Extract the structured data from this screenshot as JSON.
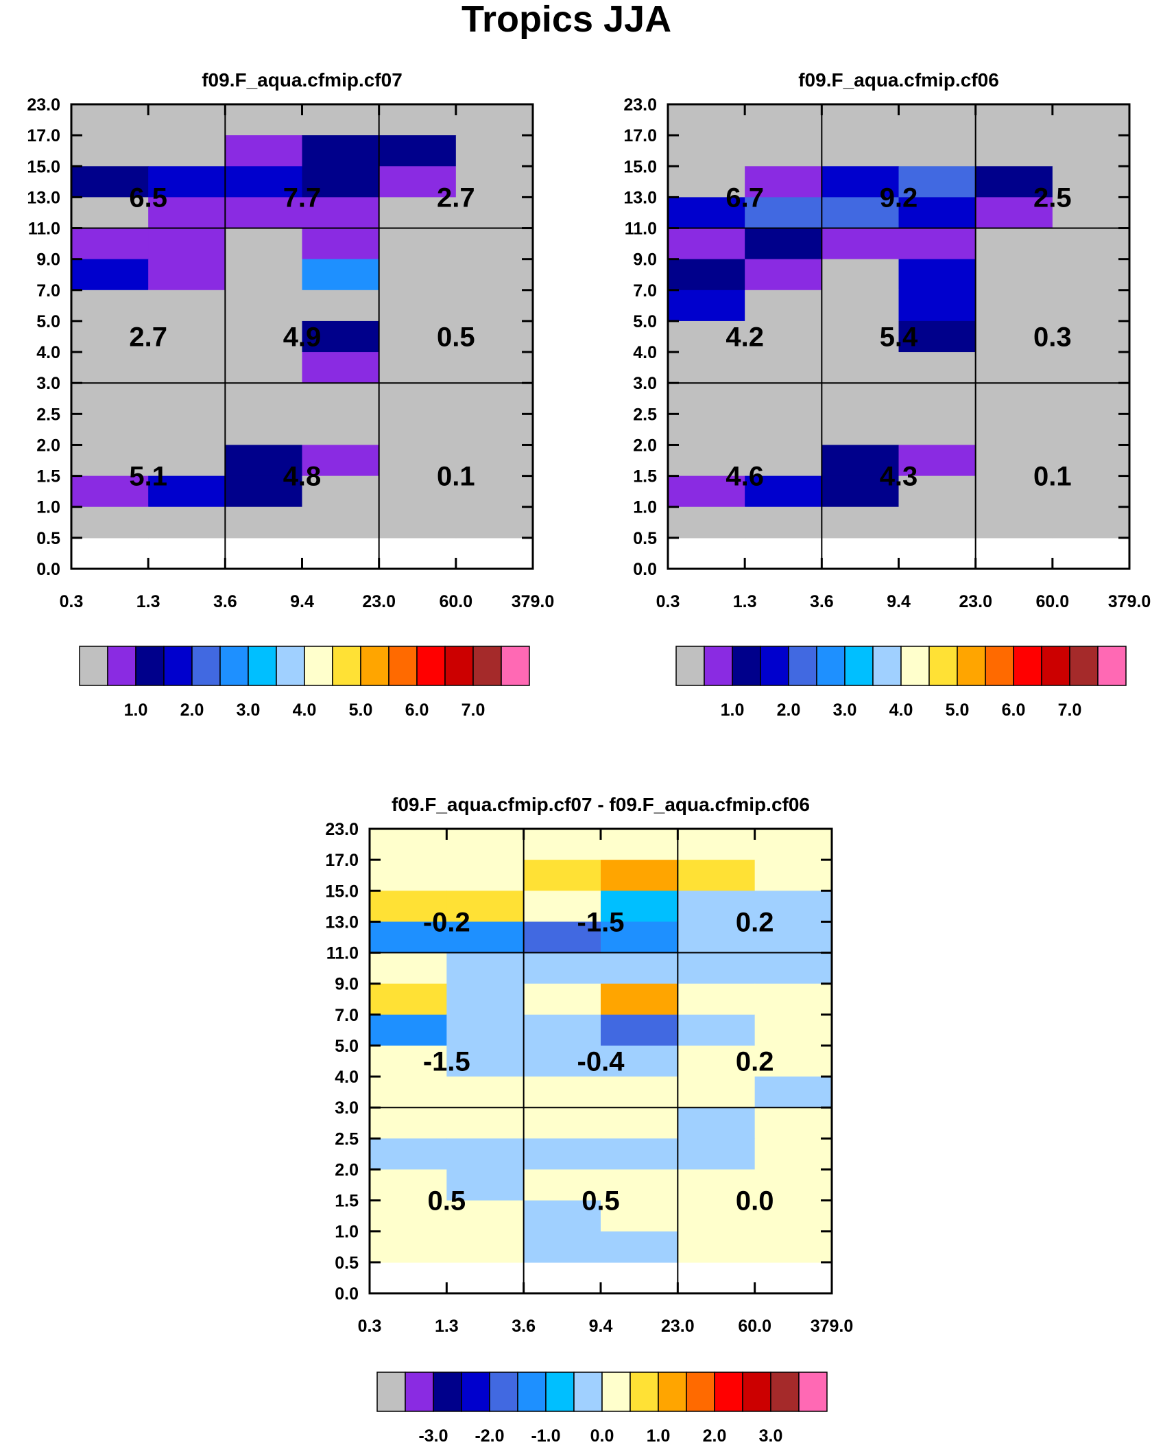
{
  "page_title": "Tropics JJA",
  "shared": {
    "x_ticks": [
      "0.3",
      "1.3",
      "3.6",
      "9.4",
      "23.0",
      "60.0",
      "379.0"
    ],
    "y_ticks": [
      "0.0",
      "0.5",
      "1.0",
      "1.5",
      "2.0",
      "2.5",
      "3.0",
      "4.0",
      "5.0",
      "7.0",
      "9.0",
      "11.0",
      "13.0",
      "15.0",
      "17.0",
      "23.0"
    ],
    "abs_colorbar": {
      "colors": [
        "#c0c0c0",
        "#8a2be2",
        "#00008b",
        "#0000cd",
        "#4169e1",
        "#1e90ff",
        "#00bfff",
        "#a0d0ff",
        "#ffffcc",
        "#ffe135",
        "#ffa500",
        "#ff6a00",
        "#ff0000",
        "#cc0000",
        "#a52a2a",
        "#ff69b4"
      ],
      "labels": [
        "1.0",
        "2.0",
        "3.0",
        "4.0",
        "5.0",
        "6.0",
        "7.0"
      ]
    },
    "diff_colorbar": {
      "colors": [
        "#c0c0c0",
        "#8a2be2",
        "#00008b",
        "#0000cd",
        "#4169e1",
        "#1e90ff",
        "#00bfff",
        "#a0d0ff",
        "#ffffcc",
        "#ffe135",
        "#ffa500",
        "#ff6a00",
        "#ff0000",
        "#cc0000",
        "#a52a2a",
        "#ff69b4"
      ],
      "labels": [
        "-3.0",
        "-2.0",
        "-1.0",
        "0.0",
        "1.0",
        "2.0",
        "3.0"
      ]
    }
  },
  "chart_data": [
    {
      "type": "heatmap",
      "title": "f09.F_aqua.cfmip.cf07",
      "xlabel": "",
      "ylabel": "",
      "cells_row_major_top_to_bottom": [
        [
          0,
          0,
          0,
          0,
          0,
          0
        ],
        [
          0,
          0,
          1,
          2,
          2,
          0
        ],
        [
          2,
          3,
          3,
          2,
          1,
          0
        ],
        [
          0,
          1,
          1,
          1,
          0,
          0
        ],
        [
          1,
          1,
          0,
          1,
          0,
          0
        ],
        [
          3,
          1,
          0,
          5,
          0,
          0
        ],
        [
          0,
          0,
          0,
          0,
          0,
          0
        ],
        [
          0,
          0,
          0,
          2,
          0,
          0
        ],
        [
          0,
          0,
          0,
          1,
          0,
          0
        ],
        [
          0,
          0,
          0,
          0,
          0,
          0
        ],
        [
          0,
          0,
          0,
          0,
          0,
          0
        ],
        [
          0,
          0,
          2,
          1,
          0,
          0
        ],
        [
          1,
          3,
          2,
          0,
          0,
          0
        ],
        [
          0,
          0,
          0,
          0,
          0,
          0
        ]
      ],
      "cell_values_encoding": "0=gray(0), 1=1.0, 2=1.5, 3=2.0, 4=2.5, 5=3.0",
      "region_values": [
        [
          "6.5",
          "7.7",
          "2.7"
        ],
        [
          "2.7",
          "4.9",
          "0.5"
        ],
        [
          "5.1",
          "4.8",
          "0.1"
        ]
      ]
    },
    {
      "type": "heatmap",
      "title": "f09.F_aqua.cfmip.cf06",
      "xlabel": "",
      "ylabel": "",
      "cells_row_major_top_to_bottom": [
        [
          0,
          0,
          0,
          0,
          0,
          0
        ],
        [
          0,
          0,
          0,
          0,
          0,
          0
        ],
        [
          0,
          1,
          3,
          4,
          2,
          0
        ],
        [
          3,
          4,
          4,
          3,
          1,
          0
        ],
        [
          1,
          2,
          1,
          1,
          0,
          0
        ],
        [
          2,
          1,
          0,
          3,
          0,
          0
        ],
        [
          3,
          0,
          0,
          3,
          0,
          0
        ],
        [
          0,
          0,
          0,
          2,
          0,
          0
        ],
        [
          0,
          0,
          0,
          0,
          0,
          0
        ],
        [
          0,
          0,
          0,
          0,
          0,
          0
        ],
        [
          0,
          0,
          0,
          0,
          0,
          0
        ],
        [
          0,
          0,
          2,
          1,
          0,
          0
        ],
        [
          1,
          3,
          2,
          0,
          0,
          0
        ],
        [
          0,
          0,
          0,
          0,
          0,
          0
        ]
      ],
      "cell_values_encoding": "0=gray(0), 1=1.0, 2=1.5, 3=2.0, 4=2.5",
      "region_values": [
        [
          "6.7",
          "9.2",
          "2.5"
        ],
        [
          "4.2",
          "5.4",
          "0.3"
        ],
        [
          "4.6",
          "4.3",
          "0.1"
        ]
      ]
    },
    {
      "type": "heatmap",
      "title": "f09.F_aqua.cfmip.cf07 - f09.F_aqua.cfmip.cf06",
      "xlabel": "",
      "ylabel": "",
      "cells_row_major_top_to_bottom": [
        [
          0.0,
          0.0,
          0.0,
          0.0,
          0.0,
          0.0
        ],
        [
          0.0,
          0.0,
          0.5,
          1.0,
          0.5,
          0.0
        ],
        [
          0.5,
          0.5,
          0.0,
          -0.5,
          -0.2,
          -0.2
        ],
        [
          -1.0,
          -1.0,
          -1.5,
          -1.0,
          -0.2,
          -0.2
        ],
        [
          0.0,
          -0.2,
          -0.2,
          -0.2,
          -0.2,
          -0.2
        ],
        [
          0.5,
          -0.2,
          0.0,
          1.0,
          0.0,
          0.0
        ],
        [
          -1.0,
          -0.2,
          -0.2,
          -1.5,
          -0.2,
          0.0
        ],
        [
          0.0,
          -0.2,
          -0.2,
          -0.2,
          0.0,
          0.0
        ],
        [
          0.0,
          0.0,
          0.0,
          0.0,
          0.0,
          -0.2
        ],
        [
          0.0,
          0.0,
          0.0,
          0.0,
          -0.2,
          0.0
        ],
        [
          -0.2,
          -0.2,
          -0.2,
          -0.2,
          -0.2,
          0.0
        ],
        [
          0.0,
          -0.2,
          0.0,
          0.0,
          0.0,
          0.0
        ],
        [
          0.0,
          0.0,
          -0.2,
          0.0,
          0.0,
          0.0
        ],
        [
          0.0,
          0.0,
          -0.2,
          -0.2,
          0.0,
          0.0
        ]
      ],
      "region_values": [
        [
          "-0.2",
          "-1.5",
          "0.2"
        ],
        [
          "-1.5",
          "-0.4",
          "0.2"
        ],
        [
          "0.5",
          "0.5",
          "0.0"
        ]
      ]
    }
  ]
}
